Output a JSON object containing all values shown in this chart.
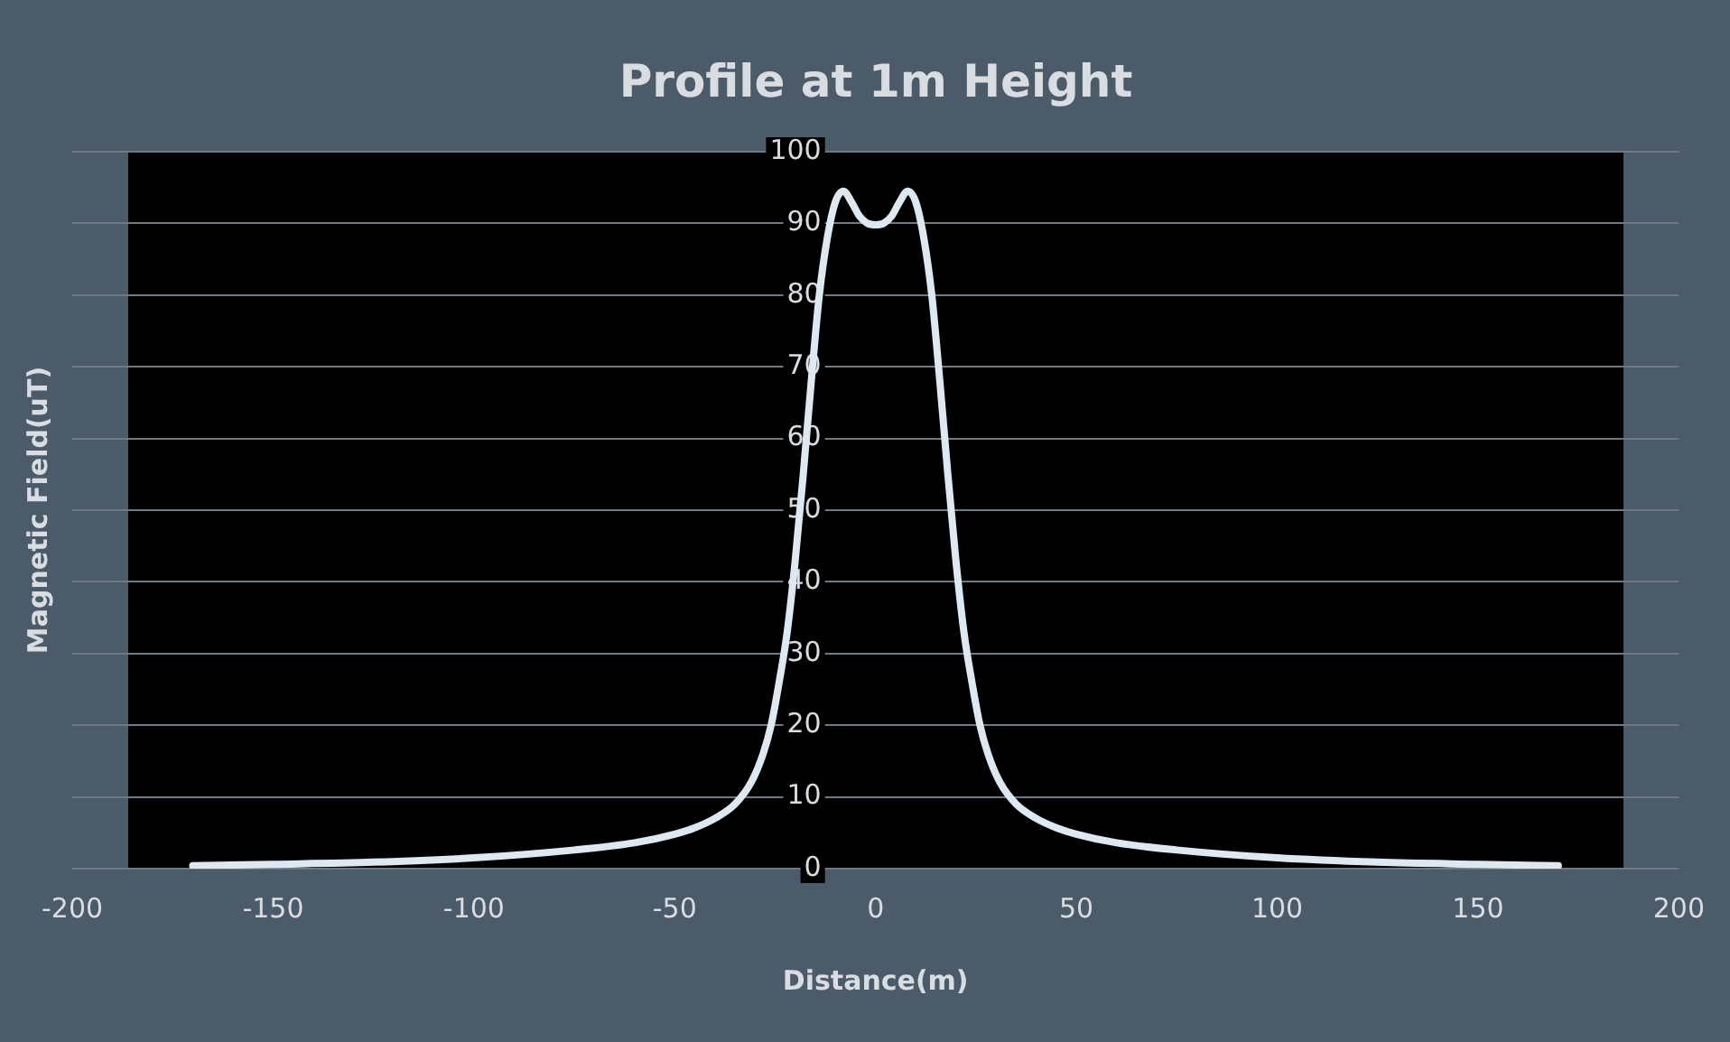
{
  "chart_data": {
    "type": "line",
    "title": "Profile at 1m Height",
    "xlabel": "Distance(m)",
    "ylabel": "Magnetic Field(uT)",
    "x": [
      -170,
      -150,
      -125,
      -100,
      -75,
      -60,
      -50,
      -45,
      -40,
      -35,
      -31,
      -28,
      -26,
      -24,
      -22,
      -20,
      -18,
      -16,
      -14,
      -12,
      -10,
      -8,
      -6,
      -4,
      -2,
      0,
      2,
      4,
      6,
      8,
      10,
      12,
      14,
      16,
      18,
      20,
      22,
      24,
      26,
      28,
      31,
      35,
      40,
      45,
      50,
      60,
      75,
      100,
      125,
      150,
      170
    ],
    "series": [
      {
        "color": "#dde8f0",
        "values": [
          0.4,
          0.6,
          0.9,
          1.5,
          2.6,
          3.6,
          4.8,
          5.7,
          7,
          9,
          12,
          16,
          20,
          26,
          33,
          43,
          55,
          68,
          80,
          88,
          93,
          94.5,
          93,
          91,
          90,
          89.8,
          90,
          91,
          93,
          94.5,
          93,
          88,
          80,
          68,
          55,
          43,
          33,
          26,
          20,
          16,
          12,
          9,
          7,
          5.7,
          4.8,
          3.6,
          2.6,
          1.5,
          0.9,
          0.6,
          0.4
        ]
      }
    ],
    "xlim": [
      -200,
      200
    ],
    "xticks": [
      -200,
      -150,
      -100,
      -50,
      0,
      50,
      100,
      150,
      200
    ],
    "ylim": [
      0,
      100
    ],
    "yticks": [
      0,
      10,
      20,
      30,
      40,
      50,
      60,
      70,
      80,
      90,
      100
    ],
    "grid": "y",
    "legend": false,
    "marker": "none",
    "line_style": "solid"
  }
}
